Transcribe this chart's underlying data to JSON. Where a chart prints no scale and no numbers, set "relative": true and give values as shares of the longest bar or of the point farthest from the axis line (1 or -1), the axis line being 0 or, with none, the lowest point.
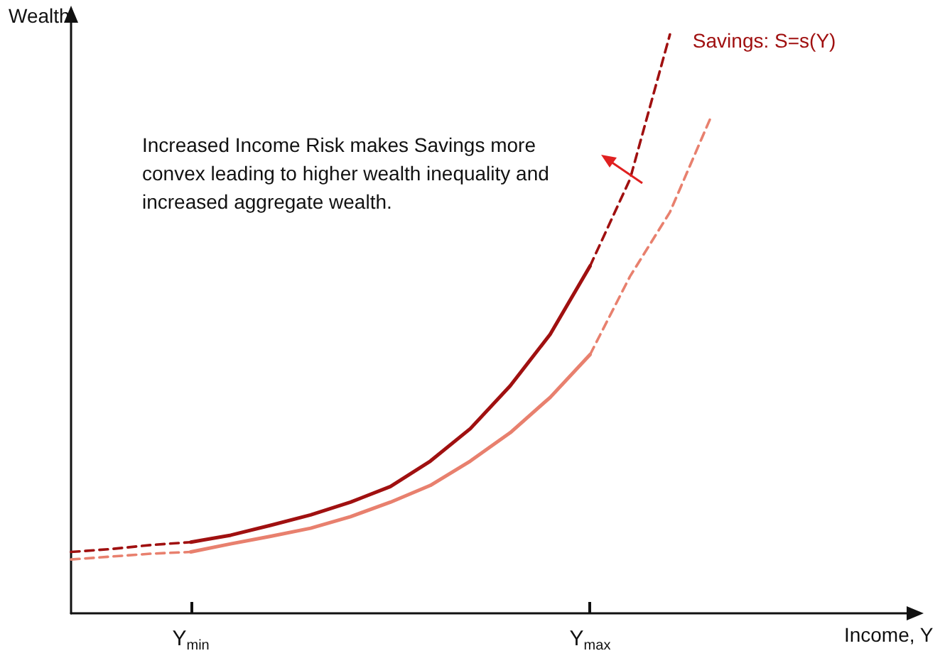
{
  "chart_data": {
    "type": "line",
    "relative": true,
    "xlabel": "Income, Y",
    "ylabel": "Wealth",
    "categories": [
      null,
      null,
      null,
      "Y$_{min}$",
      null,
      null,
      null,
      null,
      null,
      null,
      null,
      null,
      null,
      "Y$_{max}$",
      null,
      null,
      null,
      null,
      null,
      null,
      null,
      null
    ],
    "tick_labels": "x",
    "grid": false,
    "legend": false,
    "marker": "none",
    "annotations": [
      "Increased Income Risk makes Savings more convex leading to higher wealth inequality and increased aggregate wealth."
    ],
    "series": [
      {
        "color": "#e8806e",
        "line_style": "dashed",
        "values": [
          0.093,
          0.098,
          0.103,
          0.106,
          null,
          null,
          null,
          null,
          null,
          null,
          null,
          null,
          null,
          null,
          null,
          null,
          null,
          null,
          null,
          null,
          null,
          null
        ]
      },
      {
        "color": "#e8806e",
        "line_style": "solid",
        "values": [
          null,
          null,
          null,
          0.106,
          0.12,
          0.133,
          0.147,
          0.167,
          0.192,
          0.221,
          0.263,
          0.312,
          0.373,
          0.447,
          null,
          null,
          null,
          null,
          null,
          null,
          null,
          null
        ]
      },
      {
        "color": "#e8806e",
        "line_style": "dashed",
        "values": [
          null,
          null,
          null,
          null,
          null,
          null,
          null,
          null,
          null,
          null,
          null,
          null,
          null,
          0.447,
          0.582,
          0.693,
          0.853,
          null,
          null,
          null,
          null,
          null
        ]
      },
      {
        "color": "#a01010",
        "line_style": "dashed",
        "values": [
          0.106,
          0.111,
          0.118,
          0.123,
          null,
          null,
          null,
          null,
          null,
          null,
          null,
          null,
          null,
          null,
          null,
          null,
          null,
          null,
          null,
          null,
          null,
          null
        ]
      },
      {
        "color": "#a01010",
        "line_style": "solid",
        "values": [
          null,
          null,
          null,
          0.123,
          0.135,
          0.152,
          0.17,
          0.192,
          0.219,
          0.263,
          0.319,
          0.393,
          0.482,
          0.6,
          null,
          null,
          null,
          null,
          null,
          null,
          null,
          null
        ]
      },
      {
        "name": "Savings: S=s(Y)",
        "color": "#a01010",
        "line_style": "dashed",
        "values": [
          null,
          null,
          null,
          null,
          null,
          null,
          null,
          null,
          null,
          null,
          null,
          null,
          null,
          0.6,
          0.75,
          1.0,
          null,
          null,
          null,
          null,
          null,
          null
        ]
      }
    ]
  }
}
